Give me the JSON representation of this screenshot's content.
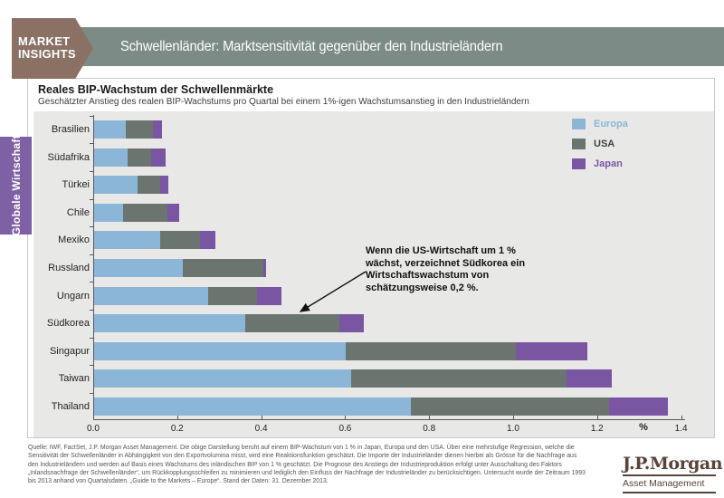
{
  "header": {
    "badge_line1": "MARKET",
    "badge_line2": "INSIGHTS",
    "title": "Schwellenländer: Marktsensitivität gegenüber den Industrieländern"
  },
  "sidebar": {
    "tab_label": "Globale Wirtschaft"
  },
  "chart": {
    "title": "Reales BIP-Wachstum der Schwellenmärkte",
    "subtitle": "Geschätzter Anstieg des realen BIP-Wachstums pro Quartal bei einem 1%-igen Wachstumsanstieg in den Industrieländern"
  },
  "chart_data": {
    "type": "bar",
    "orientation": "horizontal",
    "stacked": true,
    "categories": [
      "Brasilien",
      "Südafrika",
      "Türkei",
      "Chile",
      "Mexiko",
      "Russland",
      "Ungarn",
      "Südkorea",
      "Singapur",
      "Taiwan",
      "Thailand"
    ],
    "series": [
      {
        "name": "Europa",
        "color": "#8cb6d7",
        "label_color": "#89b5d6",
        "values": [
          0.075,
          0.08,
          0.103,
          0.07,
          0.157,
          0.211,
          0.272,
          0.36,
          0.6,
          0.613,
          0.755
        ]
      },
      {
        "name": "USA",
        "color": "#6b756f",
        "label_color": "#3d4542",
        "values": [
          0.065,
          0.055,
          0.055,
          0.105,
          0.096,
          0.192,
          0.116,
          0.225,
          0.405,
          0.512,
          0.472
        ]
      },
      {
        "name": "Japan",
        "color": "#7a55a1",
        "label_color": "#7a56a0",
        "values": [
          0.022,
          0.035,
          0.018,
          0.028,
          0.036,
          0.006,
          0.058,
          0.057,
          0.17,
          0.108,
          0.139
        ]
      }
    ],
    "xlabel": "%",
    "xlim": [
      0,
      1.4
    ],
    "xtick_step": 0.2,
    "xticks": [
      "0.0",
      "0.2",
      "0.4",
      "0.6",
      "0.8",
      "1.0",
      "1.2",
      "1.4"
    ],
    "grid": false,
    "legend_position": "top-right"
  },
  "annotation": {
    "lines": [
      "Wenn die US-Wirtschaft um 1 %",
      "wächst, verzeichnet Südkorea ein",
      "Wirtschaftswachstum von",
      "schätzungsweise 0,2 %."
    ]
  },
  "footer": {
    "lines": [
      "Quelle: IWF, FactSet, J.P. Morgan Asset Management. Die obige Darstellung beruht auf einem BIP-Wachstum von 1 % in Japan, Europa und den USA. Über eine mehrstufige Regression, welche die",
      "Sensitivität der Schwellenländer in Abhängigkeit von den Exportvolumina misst, wird eine Reaktionsfunktion geschätzt. Die Importe der Industrieländer dienen hierbei als Grösse für die Nachfrage aus",
      "den Industrieländern und werden auf Basis eines Wachstums des inländischen BIP von 1 % geschätzt. Die Prognose des Anstiegs der Industrieproduktion erfolgt unter Ausschaltung des Faktors",
      "„Inlandsnachfrage der Schwellenländer“, um Rückkopplungsschleifen zu minimieren und lediglich den Einfluss der Nachfrage der Industrieländer zu berücksichtigen. Untersucht wurde der Zeitraum 1993",
      "bis 2013 anhand von Quartalsdaten. „Guide to the Markets – Europe“. Stand der Daten: 31. Dezember 2013."
    ],
    "logo_line1": "J.P.Morgan",
    "logo_line2": "Asset Management"
  }
}
